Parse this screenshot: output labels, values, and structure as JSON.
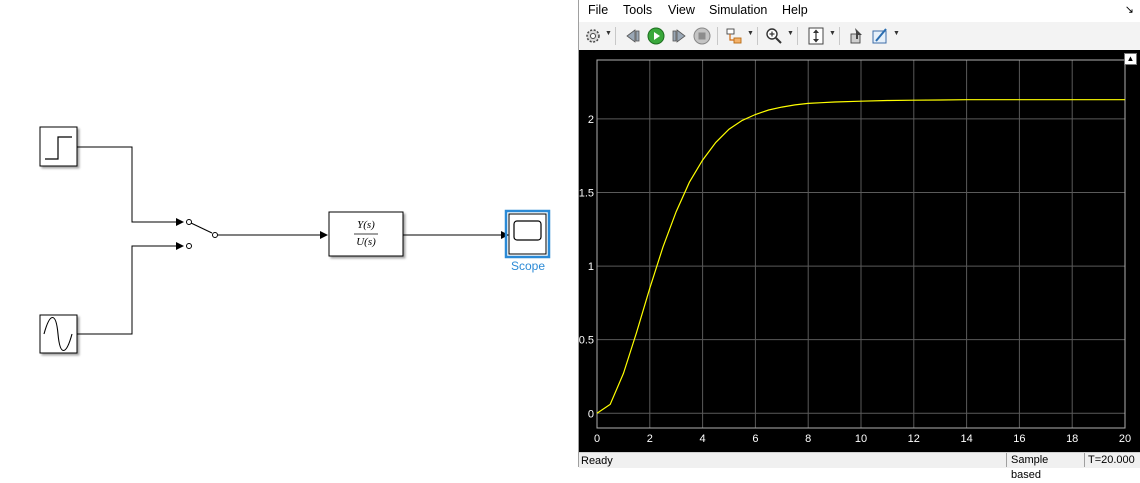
{
  "diagram": {
    "scope_label": "Scope",
    "transfer_fcn": {
      "numerator": "Y(s)",
      "denominator": "U(s)"
    },
    "blocks": [
      "step",
      "sine-wave",
      "manual-switch",
      "transfer-fcn",
      "scope"
    ]
  },
  "scope_window": {
    "menu": [
      "File",
      "Tools",
      "View",
      "Simulation",
      "Help"
    ],
    "toolbar_icons": [
      "settings-icon",
      "restore-icon",
      "run-icon",
      "step-forward-icon",
      "stop-icon",
      "highlight-icon",
      "zoom-icon",
      "autoscale-icon",
      "cursor-icon",
      "measurement-icon"
    ],
    "colors": {
      "plot_bg": "#000000",
      "trace": "#ffff00",
      "grid": "#5a5a5a",
      "axis_text": "#ffffff"
    },
    "status": {
      "left": "Ready",
      "mode": "Sample based",
      "time": "T=20.000"
    }
  },
  "chart_data": {
    "type": "line",
    "title": "",
    "xlabel": "",
    "ylabel": "",
    "xlim": [
      0,
      20
    ],
    "ylim": [
      -0.1,
      2.4
    ],
    "xticks": [
      "0",
      "2",
      "4",
      "6",
      "8",
      "10",
      "12",
      "14",
      "16",
      "18",
      "20"
    ],
    "yticks": [
      "0",
      "0.5",
      "1",
      "1.5",
      "2"
    ],
    "grid": true,
    "series": [
      {
        "color": "#ffff00",
        "x": [
          0,
          0.5,
          1,
          1.5,
          2,
          2.5,
          3,
          3.5,
          4,
          4.5,
          5,
          5.5,
          6,
          6.5,
          7,
          7.5,
          8,
          8.5,
          9,
          10,
          11,
          12,
          13,
          14,
          16,
          18,
          20
        ],
        "y": [
          0,
          0.06,
          0.27,
          0.55,
          0.85,
          1.13,
          1.37,
          1.57,
          1.72,
          1.84,
          1.93,
          1.99,
          2.03,
          2.06,
          2.08,
          2.095,
          2.105,
          2.11,
          2.115,
          2.12,
          2.125,
          2.127,
          2.128,
          2.13,
          2.13,
          2.13,
          2.13
        ]
      }
    ]
  }
}
